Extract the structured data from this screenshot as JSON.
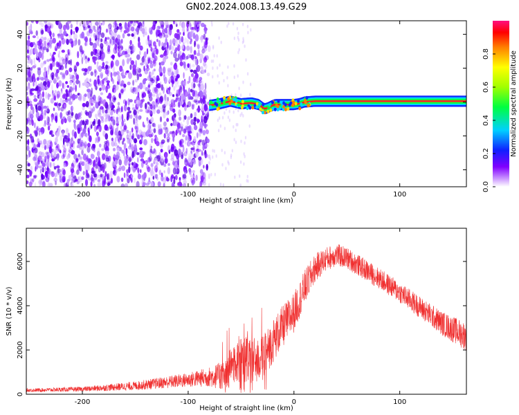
{
  "title": "GN02.2024.008.13.49.G29",
  "colors": {
    "snr_line": "#f03030",
    "spec_background": "#ffffff",
    "spec_scatter": "#7000ff",
    "spec_trace_core": "#ff2020"
  },
  "chart_data": [
    {
      "type": "heatmap",
      "name": "spectrogram",
      "title": "GN02.2024.008.13.49.G29",
      "xlabel": "Height of straight line (km)",
      "ylabel": "Frequency (Hz)",
      "xlim": [
        -253,
        163
      ],
      "ylim": [
        -50,
        48
      ],
      "xticks": [
        -200,
        -100,
        0,
        100
      ],
      "xtick_labels": [
        "-200",
        "-100",
        "0",
        "100"
      ],
      "yticks": [
        -40,
        -20,
        0,
        20,
        40
      ],
      "ytick_labels": [
        "-40",
        "-20",
        "0",
        "20",
        "40"
      ],
      "noise_region_x": [
        -253,
        -80
      ],
      "trace": {
        "x": [
          -80,
          -70,
          -60,
          -50,
          -40,
          -33,
          -28,
          -25,
          -22,
          -18,
          -10,
          0,
          5,
          10,
          20,
          50,
          100,
          163
        ],
        "hz": [
          -2,
          -1,
          0.5,
          -1,
          -0.5,
          -1.5,
          -4,
          -3.5,
          -2.5,
          -1.5,
          -1.5,
          -1.5,
          -1,
          0,
          0.5,
          0.5,
          0.5,
          0.5
        ]
      },
      "colorbar": {
        "label": "Normalized spectral amplitude",
        "range": [
          0,
          1
        ],
        "ticks": [
          0.0,
          0.2,
          0.4,
          0.6,
          0.8
        ],
        "tick_labels": [
          "0.0",
          "0.2",
          "0.4",
          "0.6",
          "0.8"
        ]
      }
    },
    {
      "type": "line",
      "name": "snr",
      "xlabel": "Height of straight line (km)",
      "ylabel": "SNR (10 * v/v)",
      "xlim": [
        -253,
        163
      ],
      "ylim": [
        0,
        7500
      ],
      "xticks": [
        -200,
        -100,
        0,
        100
      ],
      "xtick_labels": [
        "-200",
        "-100",
        "0",
        "100"
      ],
      "yticks": [
        0,
        2000,
        4000,
        6000
      ],
      "ytick_labels": [
        "0",
        "2000",
        "4000",
        "6000"
      ],
      "envelope": {
        "x": [
          -253,
          -200,
          -150,
          -100,
          -80,
          -65,
          -60,
          -50,
          -40,
          -30,
          -20,
          -10,
          0,
          10,
          20,
          30,
          40,
          50,
          60,
          80,
          100,
          120,
          140,
          163
        ],
        "mean": [
          180,
          230,
          380,
          650,
          780,
          850,
          1200,
          1700,
          1500,
          1600,
          2400,
          3100,
          3700,
          4800,
          5700,
          6100,
          6300,
          6150,
          5850,
          5250,
          4600,
          3900,
          3200,
          2600
        ],
        "amp": [
          80,
          110,
          200,
          330,
          450,
          700,
          900,
          1100,
          1100,
          1000,
          1000,
          950,
          900,
          800,
          650,
          550,
          520,
          500,
          480,
          480,
          480,
          500,
          550,
          650
        ]
      }
    }
  ]
}
